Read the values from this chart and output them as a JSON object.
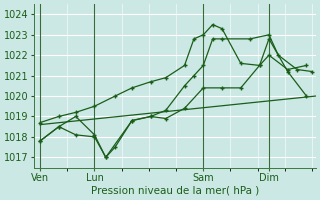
{
  "bg_color": "#cce8e4",
  "grid_color": "#b0d8d4",
  "line_color": "#1a5e1a",
  "title": "Pression niveau de la mer( hPa )",
  "ylabel_ticks": [
    1017,
    1018,
    1019,
    1020,
    1021,
    1022,
    1023,
    1024
  ],
  "xlabels": [
    "Ven",
    "Lun",
    "Sam",
    "Dim"
  ],
  "ylim": [
    1016.5,
    1024.5
  ],
  "xlim": [
    0,
    15
  ],
  "ven_x": 0.3,
  "lun_x": 3.2,
  "sam_x": 9.0,
  "dim_x": 12.5,
  "series1_x": [
    0.3,
    1.3,
    2.2,
    3.2,
    3.8,
    4.3,
    5.2,
    6.2,
    7.0,
    8.0,
    9.0,
    10.0,
    11.0,
    12.0,
    12.5,
    13.5,
    14.5
  ],
  "series1_y": [
    1017.8,
    1018.5,
    1019.0,
    1018.1,
    1017.0,
    1017.5,
    1018.8,
    1019.0,
    1018.9,
    1019.4,
    1020.4,
    1020.4,
    1020.4,
    1021.5,
    1022.8,
    1021.2,
    1020.0
  ],
  "series2_x": [
    0.3,
    15.0
  ],
  "series2_y": [
    1018.6,
    1020.0
  ],
  "series3_x": [
    0.3,
    1.3,
    2.2,
    3.2,
    4.3,
    5.2,
    6.2,
    7.0,
    8.0,
    8.5,
    9.0,
    9.5,
    10.0,
    11.0,
    12.0,
    12.5,
    13.5,
    14.5
  ],
  "series3_y": [
    1018.7,
    1019.0,
    1019.2,
    1019.5,
    1020.0,
    1020.4,
    1020.7,
    1020.9,
    1021.5,
    1022.8,
    1023.0,
    1023.5,
    1023.3,
    1021.6,
    1021.5,
    1022.0,
    1021.3,
    1021.5
  ],
  "series4_x": [
    0.3,
    1.3,
    2.2,
    3.2,
    3.8,
    5.2,
    6.2,
    7.0,
    8.0,
    8.5,
    9.0,
    9.5,
    10.0,
    11.5,
    12.5,
    13.0,
    14.0,
    14.8
  ],
  "series4_y": [
    1017.8,
    1018.5,
    1018.1,
    1018.0,
    1017.0,
    1018.8,
    1019.0,
    1019.3,
    1020.5,
    1021.0,
    1021.5,
    1022.8,
    1022.8,
    1022.8,
    1023.0,
    1022.0,
    1021.3,
    1021.2
  ],
  "vline_positions": [
    0.3,
    3.2,
    9.0,
    12.5
  ]
}
